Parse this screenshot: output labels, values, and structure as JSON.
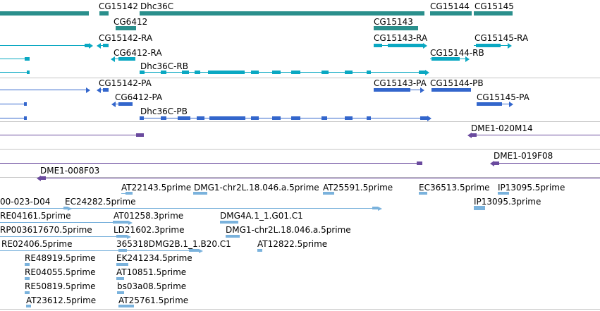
{
  "colors": {
    "gene": "#2a8f8c",
    "mrna": "#0aa8c2",
    "protein": "#3366cc",
    "bac": "#6a4a9e",
    "est": "#7ab2dc",
    "divider": "#c4c4c4"
  },
  "tracks": {
    "genes": {
      "labels": [
        "CG15142",
        "Dhc36C",
        "CG15144",
        "CG15145",
        "CG6412",
        "CG15143"
      ]
    },
    "transcripts": {
      "labels": [
        "CG15142-RA",
        "CG15143-RA",
        "CG15145-RA",
        "CG6412-RA",
        "CG15144-RB",
        "Dhc36C-RB"
      ]
    },
    "proteins": {
      "labels": [
        "CG15142-PA",
        "CG15143-PA",
        "CG15144-PB",
        "CG6412-PA",
        "CG15145-PA",
        "Dhc36C-PB"
      ]
    },
    "bacs": {
      "labels": [
        "DME1-020M14",
        "DME1-019F08",
        "DME1-008F03"
      ]
    },
    "ests": {
      "labels": [
        "AT22143.5prime",
        "DMG1-chr2L.18.046.a.5prime",
        "AT25591.5prime",
        "EC36513.5prime",
        "IP13095.5prime",
        "00-023-D04",
        "EC24282.5prime",
        "IP13095.3prime",
        "RE04161.5prime",
        "AT01258.3prime",
        "DMG4A.1_1.G01.C1",
        "RP003617670.5prime",
        "LD21602.3prime",
        "DMG1-chr2L.18.046.a.5prime",
        "RE02406.5prime",
        "365318DMG2B.1_1.B20.C1",
        "AT12822.5prime",
        "RE48919.5prime",
        "EK241234.5prime",
        "RE04055.5prime",
        "AT10851.5prime",
        "RE50819.5prime",
        "bs03a08.5prime",
        "AT23612.5prime",
        "AT25761.5prime"
      ]
    }
  }
}
